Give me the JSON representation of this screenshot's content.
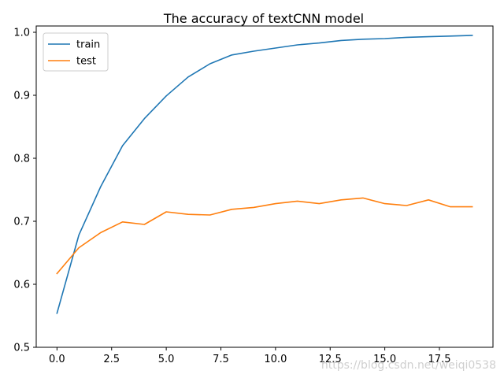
{
  "chart_data": {
    "type": "line",
    "title": "The accuracy of textCNN model",
    "xlabel": "",
    "ylabel": "",
    "xlim": [
      -0.95,
      19.95
    ],
    "ylim": [
      0.5,
      1.01
    ],
    "x_ticks": [
      0,
      2.5,
      5,
      7.5,
      10,
      12.5,
      15,
      17.5
    ],
    "x_tick_labels": [
      "0.0",
      "2.5",
      "5.0",
      "7.5",
      "10.0",
      "12.5",
      "15.0",
      "17.5"
    ],
    "y_ticks": [
      0.5,
      0.6,
      0.7,
      0.8,
      0.9,
      1.0
    ],
    "y_tick_labels": [
      "0.5",
      "0.6",
      "0.7",
      "0.8",
      "0.9",
      "1.0"
    ],
    "grid": false,
    "legend_position": "upper-left",
    "x": [
      0,
      1,
      2,
      3,
      4,
      5,
      6,
      7,
      8,
      9,
      10,
      11,
      12,
      13,
      14,
      15,
      16,
      17,
      18,
      19
    ],
    "series": [
      {
        "name": "train",
        "color": "#1f77b4",
        "values": [
          0.554,
          0.678,
          0.755,
          0.82,
          0.863,
          0.899,
          0.929,
          0.95,
          0.964,
          0.97,
          0.975,
          0.98,
          0.983,
          0.987,
          0.989,
          0.99,
          0.992,
          0.993,
          0.994,
          0.995
        ]
      },
      {
        "name": "test",
        "color": "#ff7f0e",
        "values": [
          0.617,
          0.658,
          0.682,
          0.699,
          0.695,
          0.715,
          0.711,
          0.71,
          0.719,
          0.722,
          0.728,
          0.732,
          0.728,
          0.734,
          0.737,
          0.728,
          0.725,
          0.734,
          0.723,
          0.723
        ]
      }
    ]
  },
  "watermark": {
    "text": "https://blog.csdn.net/weiqi0538"
  }
}
